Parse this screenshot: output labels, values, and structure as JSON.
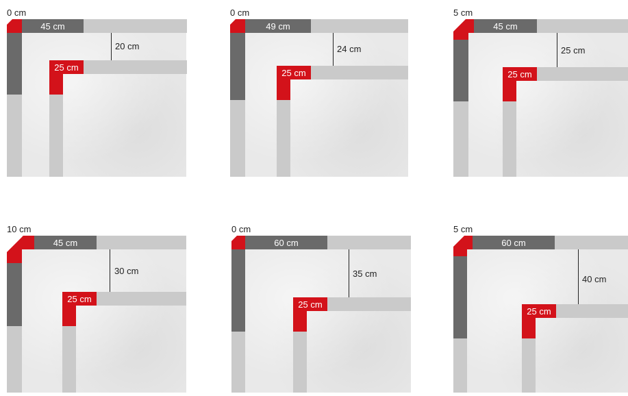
{
  "panels": [
    {
      "corner": "0 cm",
      "top": "45 cm",
      "depth": "20 cm",
      "step": "25 cm"
    },
    {
      "corner": "0 cm",
      "top": "49 cm",
      "depth": "24 cm",
      "step": "25 cm"
    },
    {
      "corner": "5 cm",
      "top": "45 cm",
      "depth": "25 cm",
      "step": "25 cm"
    },
    {
      "corner": "10 cm",
      "top": "45 cm",
      "depth": "30 cm",
      "step": "25 cm"
    },
    {
      "corner": "0 cm",
      "top": "60 cm",
      "depth": "35 cm",
      "step": "25 cm"
    },
    {
      "corner": "5 cm",
      "top": "60 cm",
      "depth": "40 cm",
      "step": "25 cm"
    }
  ],
  "colors": {
    "accent": "#d3121a",
    "dark": "#6a6a6a",
    "light": "#cacaca",
    "slab": "#e9e9e9"
  }
}
